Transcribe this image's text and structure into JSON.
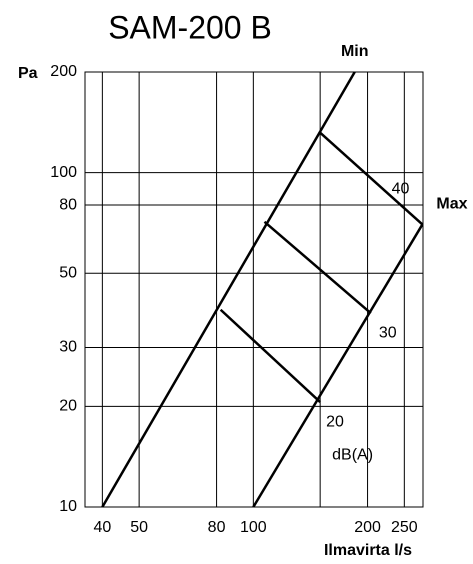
{
  "chart_data": {
    "type": "line",
    "title": "SAM-200 B",
    "x_label": "Ilmavirta l/s",
    "y_label": "Pa",
    "log_x": true,
    "log_y": true,
    "grid": true,
    "xlim": [
      36,
      280
    ],
    "ylim": [
      10,
      200
    ],
    "xticks": [
      40,
      50,
      80,
      100,
      200,
      250
    ],
    "yticks": [
      10,
      20,
      30,
      50,
      80,
      100,
      200
    ],
    "xgrid": [
      40,
      50,
      80,
      100,
      150,
      200,
      250
    ],
    "color": "#000000",
    "series": [
      {
        "name": "Min",
        "x": [
          40,
          185
        ],
        "values": [
          10,
          200
        ]
      },
      {
        "name": "Max",
        "x": [
          100,
          279
        ],
        "values": [
          10,
          70
        ]
      },
      {
        "name": "40",
        "x": [
          150,
          279
        ],
        "values": [
          131.7,
          70
        ]
      },
      {
        "name": "30",
        "x": [
          107,
          204
        ],
        "values": [
          71.3,
          38
        ]
      },
      {
        "name": "20",
        "x": [
          82,
          150
        ],
        "values": [
          38.9,
          20.6
        ]
      }
    ],
    "annotation": "dB(A)"
  }
}
